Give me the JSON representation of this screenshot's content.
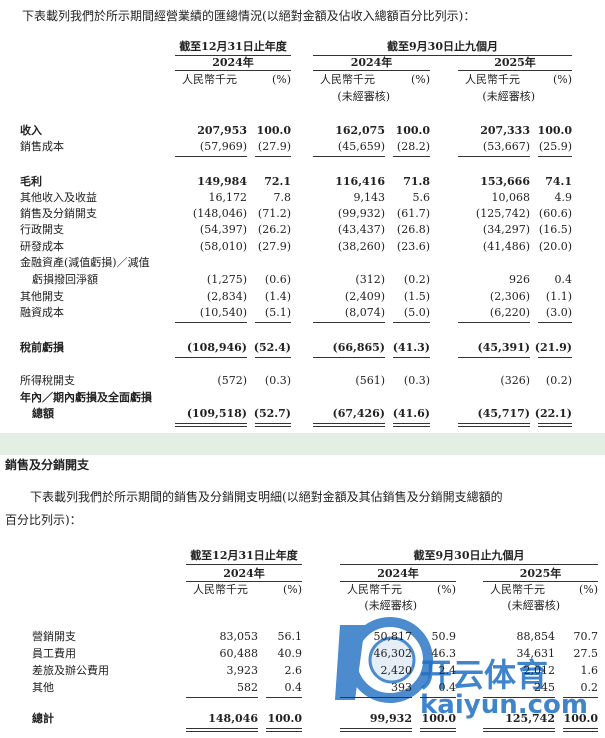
{
  "intro": "下表載列我們於所示期間經營業績的匯總情況(以絕對金額及佔收入總額百分比列示)：",
  "table1": {
    "headers": {
      "period_fy": "截至12月31日止年度",
      "period_9m": "截至9月30日止九個月",
      "years": [
        "2024年",
        "2024年",
        "2025年"
      ],
      "units": [
        "人民幣千元",
        "(%)",
        "人民幣千元",
        "(%)",
        "人民幣千元",
        "(%)"
      ],
      "unaudited": [
        "(未經審核)",
        "(未經審核)"
      ]
    },
    "rows": [
      {
        "label": [
          "收入"
        ],
        "values": [
          "207,953",
          "100.0",
          "162,075",
          "100.0",
          "207,333",
          "100.0"
        ]
      },
      {
        "label": [
          "銷售成本"
        ],
        "values": [
          "(57,969)",
          "(27.9)",
          "(45,659)",
          "(28.2)",
          "(53,667)",
          "(25.9)"
        ]
      },
      {
        "label": [
          "毛利"
        ],
        "values": [
          "149,984",
          "72.1",
          "116,416",
          "71.8",
          "153,666",
          "74.1"
        ]
      },
      {
        "label": [
          "其他收入及收益"
        ],
        "values": [
          "16,172",
          "7.8",
          "9,143",
          "5.6",
          "10,068",
          "4.9"
        ]
      },
      {
        "label": [
          "銷售及分銷開支"
        ],
        "values": [
          "(148,046)",
          "(71.2)",
          "(99,932)",
          "(61.7)",
          "(125,742)",
          "(60.6)"
        ]
      },
      {
        "label": [
          "行政開支"
        ],
        "values": [
          "(54,397)",
          "(26.2)",
          "(43,437)",
          "(26.8)",
          "(34,297)",
          "(16.5)"
        ]
      },
      {
        "label": [
          "研發成本"
        ],
        "values": [
          "(58,010)",
          "(27.9)",
          "(38,260)",
          "(23.6)",
          "(41,486)",
          "(20.0)"
        ]
      },
      {
        "label": [
          "金融資產(減值虧損)／減值",
          "虧損撥回淨額"
        ],
        "values": [
          "(1,275)",
          "(0.6)",
          "(312)",
          "(0.2)",
          "926",
          "0.4"
        ]
      },
      {
        "label": [
          "其他開支"
        ],
        "values": [
          "(2,834)",
          "(1.4)",
          "(2,409)",
          "(1.5)",
          "(2,306)",
          "(1.1)"
        ]
      },
      {
        "label": [
          "融資成本"
        ],
        "values": [
          "(10,540)",
          "(5.1)",
          "(8,074)",
          "(5.0)",
          "(6,220)",
          "(3.0)"
        ]
      },
      {
        "label": [
          "稅前虧損"
        ],
        "values": [
          "(108,946)",
          "(52.4)",
          "(66,865)",
          "(41.3)",
          "(45,391)",
          "(21.9)"
        ]
      },
      {
        "label": [
          "所得稅開支"
        ],
        "values": [
          "(572)",
          "(0.3)",
          "(561)",
          "(0.3)",
          "(326)",
          "(0.2)"
        ]
      },
      {
        "label": [
          "年內／期內虧損及全面虧損",
          "總額"
        ],
        "values": [
          "(109,518)",
          "(52.7)",
          "(67,426)",
          "(41.6)",
          "(45,717)",
          "(22.1)"
        ]
      }
    ]
  },
  "section_title": "銷售及分銷開支",
  "paragraph": [
    "下表載列我們於所示期間的銷售及分銷開支明細(以絕對金額及其佔銷售及分銷開支總額的",
    "百分比列示)："
  ],
  "table2": {
    "headers": {
      "period_fy": "截至12月31日止年度",
      "period_9m": "截至9月30日止九個月",
      "years": [
        "2024年",
        "2024年",
        "2025年"
      ],
      "units": [
        "人民幣千元",
        "(%)",
        "人民幣千元",
        "(%)",
        "人民幣千元",
        "(%)"
      ],
      "unaudited": [
        "(未經審核)",
        "(未經審核)"
      ]
    },
    "rows": [
      {
        "label": [
          "營銷開支"
        ],
        "values": [
          "83,053",
          "56.1",
          "50,817",
          "50.9",
          "88,854",
          "70.7"
        ]
      },
      {
        "label": [
          "員工費用"
        ],
        "values": [
          "60,488",
          "40.9",
          "46,302",
          "46.3",
          "34,631",
          "27.5"
        ]
      },
      {
        "label": [
          "差旅及辦公費用"
        ],
        "values": [
          "3,923",
          "2.6",
          "2,420",
          "2.4",
          "2,012",
          "1.6"
        ]
      },
      {
        "label": [
          "其他"
        ],
        "values": [
          "582",
          "0.4",
          "393",
          "0.4",
          "245",
          "0.2"
        ]
      },
      {
        "label": [
          "總計"
        ],
        "values": [
          "148,046",
          "100.0",
          "99,932",
          "100.0",
          "125,742",
          "100.0"
        ]
      }
    ]
  },
  "watermark": {
    "brand": "开云体育",
    "url": "kaiyun.com"
  }
}
